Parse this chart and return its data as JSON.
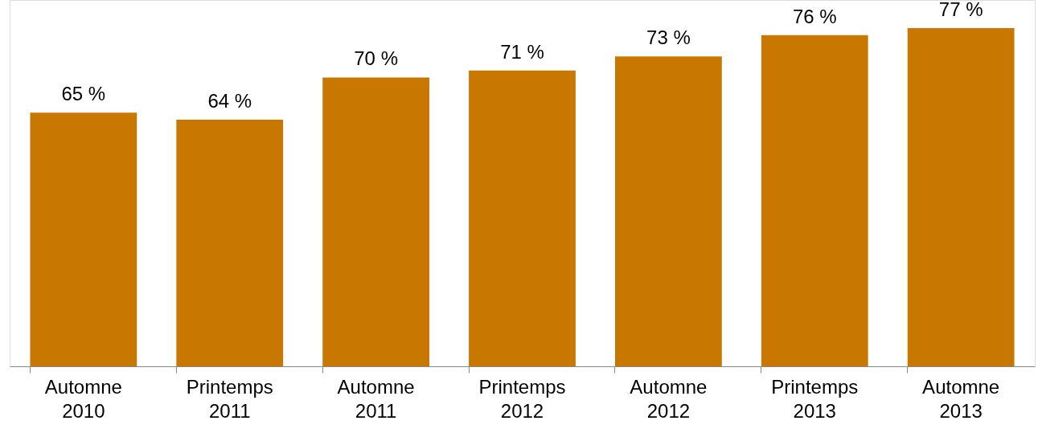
{
  "chart_data": {
    "type": "bar",
    "categories": [
      "Automne 2010",
      "Printemps 2011",
      "Automne 2011",
      "Printemps 2012",
      "Automne 2012",
      "Printemps 2013",
      "Automne 2013"
    ],
    "values": [
      65,
      64,
      70,
      71,
      73,
      76,
      77
    ],
    "value_labels": [
      "65 %",
      "64 %",
      "70 %",
      "71 %",
      "73 %",
      "76 %",
      "77 %"
    ],
    "color": "#c87800",
    "ylim": [
      29,
      81
    ],
    "grid": false,
    "tick_labels": "x"
  }
}
